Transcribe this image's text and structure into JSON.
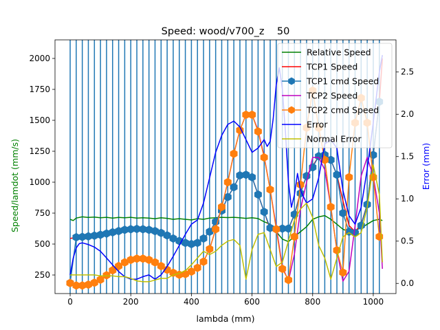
{
  "chart_data": {
    "type": "line",
    "title": "Speed: wood/v700_z    50",
    "xlabel": "lambda (mm)",
    "ylabel": "Speed/lamdot (mm/s)",
    "ylabel_right": "Error (mm)",
    "xlim": [
      -50,
      1075
    ],
    "ylim": [
      100,
      2150
    ],
    "ylim_right": [
      -0.12,
      2.88
    ],
    "xticks": [
      0,
      200,
      400,
      600,
      800,
      1000
    ],
    "yticks": [
      250,
      500,
      750,
      1000,
      1250,
      1500,
      1750,
      2000
    ],
    "yticks_right": [
      0.0,
      0.5,
      1.0,
      1.5,
      2.0,
      2.5
    ],
    "legend_position": "upper right",
    "grid": false,
    "vlines": [
      0,
      20,
      40,
      60,
      80,
      100,
      120,
      140,
      160,
      180,
      200,
      220,
      240,
      260,
      280,
      300,
      320,
      340,
      360,
      380,
      400,
      420,
      440,
      460,
      480,
      500,
      520,
      540,
      560,
      580,
      600,
      620,
      640,
      660,
      680,
      700,
      720,
      740,
      760,
      780,
      800,
      820,
      840,
      860,
      880,
      900,
      920,
      940,
      960,
      980,
      1000,
      1020
    ],
    "vline_color": "#1f77b4",
    "series": [
      {
        "name": "Relative Speed",
        "color": "#008000",
        "axis": "left",
        "style": "line",
        "x": [
          0,
          10,
          20,
          40,
          60,
          80,
          100,
          120,
          140,
          160,
          180,
          200,
          220,
          240,
          260,
          280,
          300,
          320,
          340,
          360,
          380,
          400,
          420,
          440,
          460,
          480,
          500,
          520,
          540,
          560,
          580,
          600,
          620,
          640,
          660,
          680,
          700,
          720,
          740,
          760,
          780,
          800,
          820,
          840,
          860,
          880,
          900,
          920,
          940,
          960,
          980,
          1000,
          1020,
          1030
        ],
        "y": [
          700,
          690,
          710,
          720,
          715,
          718,
          712,
          716,
          710,
          715,
          712,
          716,
          710,
          713,
          710,
          705,
          712,
          708,
          700,
          705,
          700,
          695,
          705,
          700,
          710,
          712,
          716,
          714,
          716,
          712,
          708,
          712,
          706,
          680,
          660,
          600,
          540,
          520,
          560,
          600,
          640,
          700,
          720,
          730,
          700,
          660,
          620,
          600,
          610,
          630,
          660,
          690,
          700,
          690
        ]
      },
      {
        "name": "TCP1 Speed",
        "color": "#ff0000",
        "axis": "left",
        "style": "line",
        "x": [
          0,
          20,
          40,
          60,
          80,
          100,
          120,
          140,
          160,
          180,
          200,
          220,
          240,
          260,
          280,
          300,
          320,
          340,
          360,
          380,
          400,
          420,
          440,
          460,
          480,
          500,
          520,
          540,
          560,
          580,
          600,
          620,
          640,
          660,
          680,
          700,
          720,
          740,
          760,
          780,
          800,
          820,
          840,
          860,
          880,
          900,
          920,
          940,
          960,
          980,
          1000,
          1020,
          1030
        ],
        "y": [
          545,
          555,
          558,
          562,
          568,
          575,
          585,
          595,
          605,
          615,
          620,
          622,
          620,
          615,
          605,
          590,
          570,
          545,
          525,
          510,
          500,
          510,
          545,
          600,
          680,
          770,
          880,
          960,
          1055,
          1060,
          1040,
          900,
          760,
          620,
          600,
          620,
          620,
          740,
          920,
          1050,
          1130,
          1210,
          1220,
          1180,
          1060,
          850,
          650,
          600,
          660,
          820,
          1220,
          1650,
          2000
        ]
      },
      {
        "name": "TCP1 cmd Speed",
        "color": "#1f77b4",
        "axis": "left",
        "style": "line-marker",
        "marker": "hexagon",
        "x": [
          0,
          20,
          40,
          60,
          80,
          100,
          120,
          140,
          160,
          180,
          200,
          220,
          240,
          260,
          280,
          300,
          320,
          340,
          360,
          380,
          400,
          420,
          440,
          460,
          480,
          500,
          520,
          540,
          560,
          580,
          600,
          620,
          640,
          660,
          680,
          700,
          720,
          740,
          760,
          780,
          800,
          820,
          840,
          860,
          880,
          900,
          920,
          940,
          960,
          980,
          1000,
          1020
        ],
        "y": [
          185,
          555,
          558,
          562,
          568,
          575,
          585,
          595,
          605,
          615,
          620,
          622,
          620,
          615,
          605,
          590,
          570,
          545,
          525,
          510,
          500,
          510,
          545,
          600,
          680,
          770,
          880,
          960,
          1055,
          1060,
          1040,
          900,
          760,
          630,
          620,
          625,
          625,
          740,
          910,
          1050,
          1120,
          1210,
          1220,
          1180,
          1060,
          750,
          600,
          590,
          650,
          820,
          1220,
          1650
        ]
      },
      {
        "name": "TCP2 Speed",
        "color": "#bf00bf",
        "axis": "left",
        "style": "line",
        "x": [
          0,
          20,
          40,
          60,
          80,
          100,
          120,
          140,
          160,
          180,
          200,
          220,
          240,
          260,
          280,
          300,
          320,
          340,
          360,
          380,
          400,
          420,
          440,
          460,
          480,
          500,
          520,
          540,
          560,
          580,
          600,
          620,
          640,
          660,
          680,
          700,
          720,
          740,
          760,
          780,
          800,
          820,
          840,
          860,
          880,
          900,
          920,
          940,
          960,
          980,
          1000,
          1020,
          1030
        ],
        "y": [
          185,
          170,
          168,
          175,
          190,
          215,
          250,
          290,
          325,
          355,
          375,
          385,
          385,
          375,
          355,
          325,
          295,
          270,
          255,
          260,
          280,
          310,
          360,
          460,
          620,
          800,
          1000,
          1230,
          1420,
          1545,
          1545,
          1420,
          1210,
          940,
          640,
          320,
          200,
          420,
          780,
          1000,
          1200,
          1200,
          1100,
          800,
          450,
          200,
          280,
          650,
          1050,
          1200,
          1050,
          750,
          300
        ]
      },
      {
        "name": "TCP2 cmd Speed",
        "color": "#ff7f0e",
        "axis": "left",
        "style": "line-marker",
        "marker": "hexagon",
        "x": [
          0,
          20,
          40,
          60,
          80,
          100,
          120,
          140,
          160,
          180,
          200,
          220,
          240,
          260,
          280,
          300,
          320,
          340,
          360,
          380,
          400,
          420,
          440,
          460,
          480,
          500,
          520,
          540,
          560,
          580,
          600,
          620,
          640,
          660,
          680,
          700,
          720,
          740,
          760,
          780,
          800,
          820,
          840,
          860,
          880,
          900,
          920,
          940,
          960,
          980,
          1000,
          1020
        ],
        "y": [
          185,
          165,
          165,
          172,
          188,
          212,
          248,
          288,
          322,
          352,
          372,
          382,
          382,
          372,
          352,
          322,
          292,
          268,
          252,
          258,
          278,
          308,
          358,
          460,
          620,
          800,
          1000,
          1230,
          1420,
          1545,
          1545,
          1410,
          1200,
          940,
          620,
          300,
          210,
          560,
          980,
          1440,
          1740,
          1440,
          1180,
          800,
          450,
          270,
          1040,
          1480,
          1680,
          1480,
          1040,
          560
        ]
      },
      {
        "name": "Error",
        "color": "#0000ff",
        "axis": "right",
        "style": "line",
        "x": [
          0,
          10,
          20,
          30,
          40,
          60,
          80,
          100,
          120,
          140,
          160,
          180,
          200,
          220,
          240,
          260,
          280,
          300,
          320,
          340,
          360,
          380,
          400,
          420,
          440,
          460,
          480,
          500,
          520,
          540,
          560,
          580,
          600,
          620,
          640,
          650,
          660,
          670,
          680,
          690,
          700,
          710,
          720,
          730,
          740,
          750,
          760,
          780,
          800,
          820,
          840,
          860,
          880,
          900,
          920,
          940,
          960,
          980,
          1000,
          1020,
          1030
        ],
        "y": [
          0.1,
          0.3,
          0.42,
          0.47,
          0.48,
          0.46,
          0.43,
          0.38,
          0.3,
          0.22,
          0.14,
          0.08,
          0.05,
          0.05,
          0.08,
          0.1,
          0.05,
          0.1,
          0.2,
          0.32,
          0.45,
          0.58,
          0.7,
          0.75,
          0.95,
          1.25,
          1.55,
          1.75,
          1.88,
          1.92,
          1.85,
          1.7,
          1.55,
          1.6,
          1.7,
          1.62,
          1.68,
          1.95,
          2.35,
          2.55,
          2.3,
          1.8,
          1.2,
          0.9,
          1.05,
          1.3,
          1.1,
          0.95,
          1.0,
          1.25,
          1.65,
          1.7,
          1.6,
          1.1,
          0.8,
          0.7,
          0.9,
          1.35,
          1.9,
          2.5,
          2.7
        ]
      },
      {
        "name": "Normal Error",
        "color": "#bfbf00",
        "axis": "right",
        "style": "line",
        "x": [
          0,
          20,
          40,
          60,
          80,
          100,
          120,
          140,
          160,
          180,
          200,
          220,
          240,
          260,
          280,
          300,
          320,
          340,
          360,
          380,
          400,
          420,
          440,
          460,
          480,
          500,
          520,
          540,
          560,
          580,
          600,
          620,
          640,
          660,
          680,
          700,
          720,
          740,
          760,
          780,
          800,
          820,
          840,
          860,
          880,
          900,
          920,
          940,
          960,
          980,
          1000,
          1020,
          1030
        ],
        "y": [
          0.1,
          0.1,
          0.1,
          0.1,
          0.1,
          0.09,
          0.09,
          0.09,
          0.08,
          0.08,
          0.06,
          0.03,
          0.02,
          0.02,
          0.04,
          0.06,
          0.06,
          0.1,
          0.12,
          0.15,
          0.22,
          0.3,
          0.38,
          0.34,
          0.38,
          0.45,
          0.5,
          0.52,
          0.45,
          0.05,
          0.4,
          0.58,
          0.6,
          0.4,
          0.2,
          0.25,
          0.5,
          0.75,
          0.88,
          0.95,
          0.78,
          0.45,
          0.3,
          0.05,
          0.3,
          0.55,
          0.6,
          0.55,
          0.6,
          0.9,
          1.4,
          1.05,
          0.25
        ]
      }
    ]
  }
}
